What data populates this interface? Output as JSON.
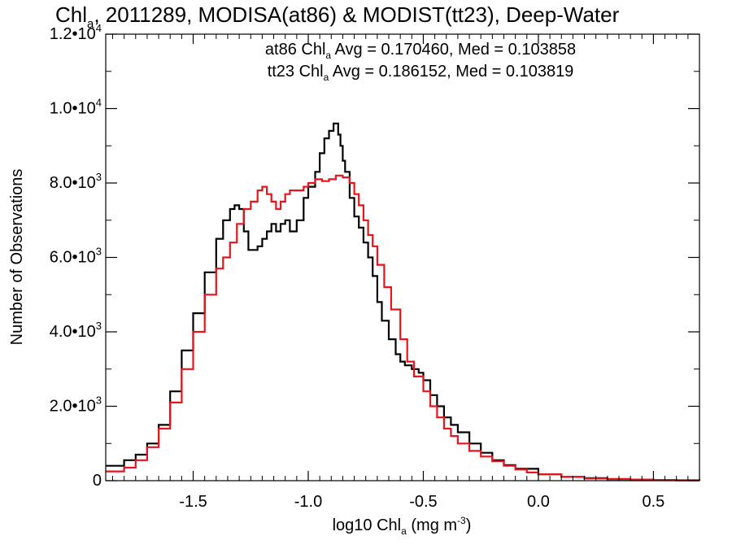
{
  "chart_data": {
    "type": "line",
    "title": {
      "prefix": "Chl",
      "prefix_sub": "a",
      "rest": ", 2011289, MODISA(at86) & MODIST(tt23), Deep-Water"
    },
    "xlabel": {
      "prefix": "log10 Chl",
      "sub": "a",
      "unit_open": " (mg m",
      "unit_sup": "-3",
      "unit_close": ")"
    },
    "ylabel": "Number of Observations",
    "xlim": [
      -1.88,
      0.7
    ],
    "ylim": [
      0,
      12000
    ],
    "x_ticks": [
      {
        "value": -1.5,
        "label": "-1.5"
      },
      {
        "value": -1.0,
        "label": "-1.0"
      },
      {
        "value": -0.5,
        "label": "-0.5"
      },
      {
        "value": 0.0,
        "label": "0.0"
      },
      {
        "value": 0.5,
        "label": "0.5"
      }
    ],
    "y_ticks": [
      {
        "value": 0,
        "mantissa": "0",
        "exp": ""
      },
      {
        "value": 2000,
        "mantissa": "2.0•10",
        "exp": "3"
      },
      {
        "value": 4000,
        "mantissa": "4.0•10",
        "exp": "3"
      },
      {
        "value": 6000,
        "mantissa": "6.0•10",
        "exp": "3"
      },
      {
        "value": 8000,
        "mantissa": "8.0•10",
        "exp": "3"
      },
      {
        "value": 10000,
        "mantissa": "1.0•10",
        "exp": "4"
      },
      {
        "value": 12000,
        "mantissa": "1.2•10",
        "exp": "4"
      }
    ],
    "legend": {
      "placement": "top-center",
      "entries": [
        {
          "prefix": "at86 Chl",
          "sub": "a",
          "text": " Avg = 0.170460, Med = 0.103858",
          "color": "#000000"
        },
        {
          "prefix": "tt23 Chl",
          "sub": "a",
          "text": " Avg = 0.186152, Med = 0.103819",
          "color": "#e8141c"
        }
      ]
    },
    "series": [
      {
        "color": "#000000",
        "x": [
          -1.88,
          -1.8,
          -1.75,
          -1.7,
          -1.65,
          -1.6,
          -1.55,
          -1.5,
          -1.45,
          -1.4,
          -1.37,
          -1.34,
          -1.32,
          -1.3,
          -1.28,
          -1.26,
          -1.24,
          -1.22,
          -1.2,
          -1.18,
          -1.16,
          -1.14,
          -1.12,
          -1.1,
          -1.08,
          -1.05,
          -1.02,
          -1.0,
          -0.97,
          -0.95,
          -0.93,
          -0.91,
          -0.89,
          -0.87,
          -0.86,
          -0.85,
          -0.84,
          -0.82,
          -0.8,
          -0.78,
          -0.76,
          -0.74,
          -0.72,
          -0.7,
          -0.68,
          -0.65,
          -0.62,
          -0.6,
          -0.58,
          -0.55,
          -0.52,
          -0.5,
          -0.47,
          -0.44,
          -0.41,
          -0.38,
          -0.35,
          -0.3,
          -0.25,
          -0.2,
          -0.15,
          -0.1,
          0.0,
          0.1,
          0.2,
          0.3,
          0.4,
          0.5,
          0.6,
          0.7
        ],
        "values": [
          400,
          550,
          700,
          1000,
          1500,
          2400,
          3500,
          4500,
          5600,
          6500,
          7000,
          7300,
          7400,
          7300,
          6700,
          6200,
          6200,
          6300,
          6500,
          6700,
          6900,
          6700,
          6900,
          7000,
          6700,
          7000,
          7600,
          7900,
          8300,
          8800,
          9200,
          9400,
          9600,
          9300,
          9000,
          8600,
          8300,
          7600,
          7100,
          6800,
          6400,
          6000,
          5500,
          4800,
          4300,
          3800,
          3400,
          3200,
          3100,
          3000,
          2900,
          2700,
          2300,
          2000,
          1700,
          1500,
          1300,
          1000,
          750,
          550,
          420,
          320,
          170,
          100,
          70,
          40,
          25,
          15,
          10,
          5
        ]
      },
      {
        "color": "#e8141c",
        "x": [
          -1.88,
          -1.8,
          -1.75,
          -1.7,
          -1.65,
          -1.6,
          -1.55,
          -1.5,
          -1.45,
          -1.4,
          -1.37,
          -1.34,
          -1.31,
          -1.28,
          -1.25,
          -1.22,
          -1.2,
          -1.18,
          -1.16,
          -1.14,
          -1.12,
          -1.1,
          -1.08,
          -1.05,
          -1.02,
          -1.0,
          -0.97,
          -0.94,
          -0.91,
          -0.88,
          -0.85,
          -0.82,
          -0.8,
          -0.78,
          -0.76,
          -0.74,
          -0.72,
          -0.7,
          -0.67,
          -0.64,
          -0.6,
          -0.57,
          -0.54,
          -0.5,
          -0.47,
          -0.44,
          -0.41,
          -0.38,
          -0.35,
          -0.3,
          -0.25,
          -0.2,
          -0.15,
          -0.1,
          -0.05,
          0.0,
          0.1,
          0.2,
          0.3,
          0.4,
          0.5,
          0.6,
          0.7
        ],
        "values": [
          250,
          350,
          550,
          900,
          1400,
          2100,
          3000,
          4000,
          5000,
          5700,
          6000,
          6400,
          6900,
          7300,
          7500,
          7800,
          7900,
          7700,
          7500,
          7300,
          7500,
          7700,
          7800,
          7800,
          7900,
          8000,
          8100,
          8050,
          8100,
          8200,
          8150,
          8000,
          7700,
          7400,
          7000,
          6600,
          6300,
          5800,
          5200,
          4600,
          3800,
          3200,
          2800,
          2400,
          2000,
          1700,
          1400,
          1200,
          1000,
          800,
          650,
          520,
          400,
          300,
          220,
          170,
          100,
          60,
          45,
          30,
          20,
          12,
          8
        ]
      }
    ]
  }
}
